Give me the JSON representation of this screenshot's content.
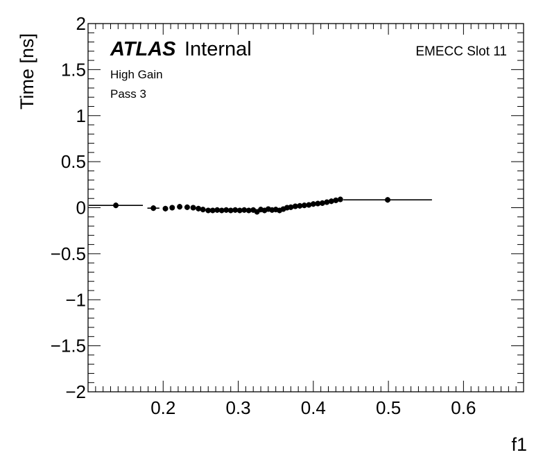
{
  "chart_data": {
    "type": "scatter",
    "title": "",
    "xlabel": "f1",
    "ylabel": "Time [ns]",
    "xlim": [
      0.1,
      0.68
    ],
    "ylim": [
      -2,
      2
    ],
    "x_ticks": [
      0.2,
      0.3,
      0.4,
      0.5,
      0.6
    ],
    "x_tick_labels": [
      "0.2",
      "0.3",
      "0.4",
      "0.5",
      "0.6"
    ],
    "y_ticks": [
      -2,
      -1.5,
      -1,
      -0.5,
      0,
      0.5,
      1,
      1.5,
      2
    ],
    "y_tick_labels": [
      "−2",
      "−1.5",
      "−1",
      "−0.5",
      "0",
      "0.5",
      "1",
      "1.5",
      "2"
    ],
    "grid": false,
    "series": [
      {
        "points": [
          {
            "x": 0.137,
            "y": 0.025,
            "x_err": 0.036
          },
          {
            "x": 0.187,
            "y": -0.005,
            "x_err": 0.008
          },
          {
            "x": 0.203,
            "y": -0.01
          },
          {
            "x": 0.212,
            "y": 0.0
          },
          {
            "x": 0.222,
            "y": 0.01
          },
          {
            "x": 0.232,
            "y": 0.005
          },
          {
            "x": 0.24,
            "y": 0.0
          },
          {
            "x": 0.247,
            "y": -0.01
          },
          {
            "x": 0.253,
            "y": -0.02
          },
          {
            "x": 0.26,
            "y": -0.03
          },
          {
            "x": 0.266,
            "y": -0.03
          },
          {
            "x": 0.272,
            "y": -0.025
          },
          {
            "x": 0.278,
            "y": -0.03
          },
          {
            "x": 0.284,
            "y": -0.025
          },
          {
            "x": 0.29,
            "y": -0.03
          },
          {
            "x": 0.296,
            "y": -0.025
          },
          {
            "x": 0.302,
            "y": -0.03
          },
          {
            "x": 0.308,
            "y": -0.025
          },
          {
            "x": 0.314,
            "y": -0.03
          },
          {
            "x": 0.32,
            "y": -0.025
          },
          {
            "x": 0.325,
            "y": -0.045
          },
          {
            "x": 0.33,
            "y": -0.02
          },
          {
            "x": 0.335,
            "y": -0.03
          },
          {
            "x": 0.34,
            "y": -0.015
          },
          {
            "x": 0.345,
            "y": -0.025
          },
          {
            "x": 0.35,
            "y": -0.02
          },
          {
            "x": 0.355,
            "y": -0.03
          },
          {
            "x": 0.36,
            "y": -0.015
          },
          {
            "x": 0.365,
            "y": 0.0
          },
          {
            "x": 0.37,
            "y": 0.005
          },
          {
            "x": 0.376,
            "y": 0.015
          },
          {
            "x": 0.382,
            "y": 0.02
          },
          {
            "x": 0.388,
            "y": 0.025
          },
          {
            "x": 0.394,
            "y": 0.03
          },
          {
            "x": 0.4,
            "y": 0.04
          },
          {
            "x": 0.406,
            "y": 0.045
          },
          {
            "x": 0.412,
            "y": 0.05
          },
          {
            "x": 0.418,
            "y": 0.06
          },
          {
            "x": 0.424,
            "y": 0.07
          },
          {
            "x": 0.43,
            "y": 0.08
          },
          {
            "x": 0.436,
            "y": 0.09
          },
          {
            "x": 0.499,
            "y": 0.085,
            "x_err": 0.059
          }
        ]
      }
    ],
    "annotations": {
      "atlas_bold": "ATLAS",
      "atlas_rest": "Internal",
      "line1": "High Gain",
      "line2": "Pass 3",
      "slot": "EMECC Slot 11"
    }
  }
}
